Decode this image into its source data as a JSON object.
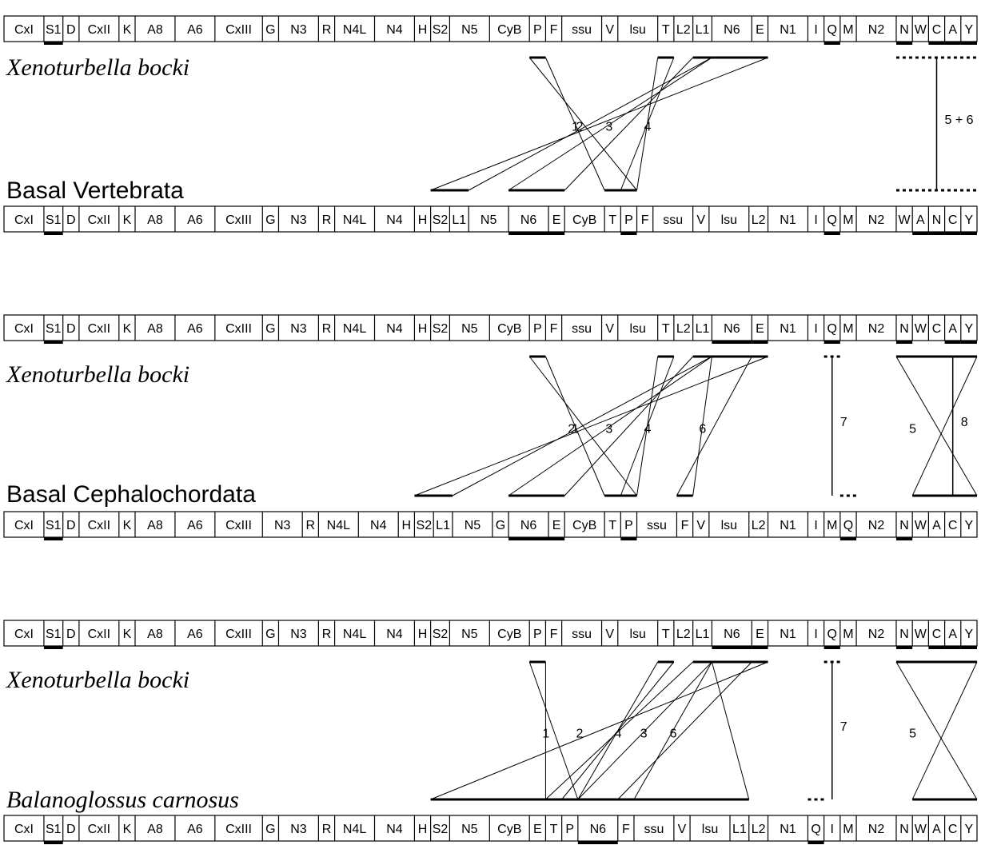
{
  "panels": [
    {
      "top_label": "Xenoturbella bocki",
      "bottom_label": "Basal Vertebrata",
      "top_genes": [
        "CxI",
        "S1",
        "D",
        "CxII",
        "K",
        "A8",
        "A6",
        "CxIII",
        "G",
        "N3",
        "R",
        "N4L",
        "N4",
        "H",
        "S2",
        "N5",
        "CyB",
        "P",
        "F",
        "ssu",
        "V",
        "lsu",
        "T",
        "L2",
        "L1",
        "N6",
        "E",
        "N1",
        "I",
        "Q",
        "M",
        "N2",
        "N",
        "W",
        "C",
        "A",
        "Y"
      ],
      "bottom_genes": [
        "CxI",
        "S1",
        "D",
        "CxII",
        "K",
        "A8",
        "A6",
        "CxIII",
        "G",
        "N3",
        "R",
        "N4L",
        "N4",
        "H",
        "S2",
        "L1",
        "N5",
        "N6",
        "E",
        "CyB",
        "T",
        "P",
        "F",
        "ssu",
        "V",
        "lsu",
        "L2",
        "N1",
        "I",
        "Q",
        "M",
        "N2",
        "W",
        "A",
        "N",
        "C",
        "Y"
      ],
      "links": [
        {
          "label": "1"
        },
        {
          "label": "2"
        },
        {
          "label": "3"
        },
        {
          "label": "4"
        },
        {
          "label": "5 + 6"
        }
      ]
    },
    {
      "top_label": "Xenoturbella bocki",
      "bottom_label": "Basal Cephalochordata",
      "top_genes": [
        "CxI",
        "S1",
        "D",
        "CxII",
        "K",
        "A8",
        "A6",
        "CxIII",
        "G",
        "N3",
        "R",
        "N4L",
        "N4",
        "H",
        "S2",
        "N5",
        "CyB",
        "P",
        "F",
        "ssu",
        "V",
        "lsu",
        "T",
        "L2",
        "L1",
        "N6",
        "E",
        "N1",
        "I",
        "Q",
        "M",
        "N2",
        "N",
        "W",
        "C",
        "A",
        "Y"
      ],
      "bottom_genes": [
        "CxI",
        "S1",
        "D",
        "CxII",
        "K",
        "A8",
        "A6",
        "CxIII",
        "N3",
        "R",
        "N4L",
        "N4",
        "H",
        "S2",
        "L1",
        "N5",
        "G",
        "N6",
        "E",
        "CyB",
        "T",
        "P",
        "ssu",
        "F",
        "V",
        "lsu",
        "L2",
        "N1",
        "I",
        "M",
        "Q",
        "N2",
        "N",
        "W",
        "A",
        "C",
        "Y"
      ],
      "links": [
        {
          "label": "1"
        },
        {
          "label": "2"
        },
        {
          "label": "3"
        },
        {
          "label": "4"
        },
        {
          "label": "5"
        },
        {
          "label": "6"
        },
        {
          "label": "7"
        },
        {
          "label": "8"
        }
      ]
    },
    {
      "top_label": "Xenoturbella bocki",
      "bottom_label": "Balanoglossus carnosus",
      "top_genes": [
        "CxI",
        "S1",
        "D",
        "CxII",
        "K",
        "A8",
        "A6",
        "CxIII",
        "G",
        "N3",
        "R",
        "N4L",
        "N4",
        "H",
        "S2",
        "N5",
        "CyB",
        "P",
        "F",
        "ssu",
        "V",
        "lsu",
        "T",
        "L2",
        "L1",
        "N6",
        "E",
        "N1",
        "I",
        "Q",
        "M",
        "N2",
        "N",
        "W",
        "C",
        "A",
        "Y"
      ],
      "bottom_genes": [
        "CxI",
        "S1",
        "D",
        "CxII",
        "K",
        "A8",
        "A6",
        "CxIII",
        "G",
        "N3",
        "R",
        "N4L",
        "N4",
        "H",
        "S2",
        "N5",
        "CyB",
        "E",
        "T",
        "P",
        "N6",
        "F",
        "ssu",
        "V",
        "lsu",
        "L1",
        "L2",
        "N1",
        "Q",
        "I",
        "M",
        "N2",
        "N",
        "W",
        "A",
        "C",
        "Y"
      ],
      "links": [
        {
          "label": "1"
        },
        {
          "label": "2"
        },
        {
          "label": "3"
        },
        {
          "label": "4"
        },
        {
          "label": "5"
        },
        {
          "label": "6"
        },
        {
          "label": "7"
        }
      ]
    }
  ]
}
